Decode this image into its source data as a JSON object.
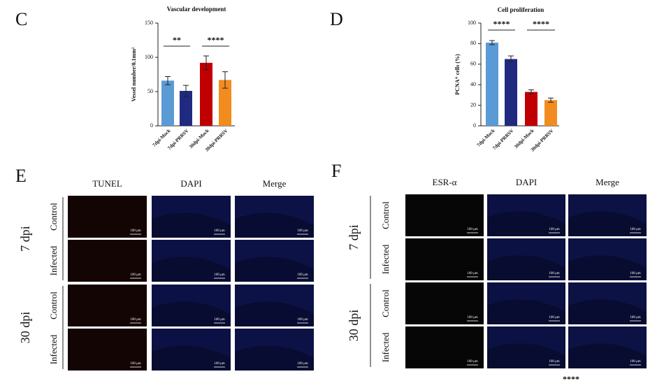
{
  "chart_data": [
    {
      "type": "bar",
      "panel_label": "C",
      "title": "Vascular development",
      "y_label": "Vessel number/0.1mm²",
      "categories": [
        "7dpi-Mock",
        "7dpi-PRRSV",
        "30dpi-Mock",
        "30dpi-PRRSV"
      ],
      "values": [
        66,
        51,
        92,
        67
      ],
      "errors": [
        6,
        8,
        10,
        12
      ],
      "colors": [
        "#5b9bd5",
        "#1f2a80",
        "#c00000",
        "#f28c1e"
      ],
      "ylim": [
        0,
        150
      ],
      "yticks": [
        0,
        50,
        100,
        150
      ],
      "annotations": [
        "**",
        "****"
      ]
    },
    {
      "type": "bar",
      "panel_label": "D",
      "title": "Cell proliferation",
      "y_label": "PCNA⁺ cells (%)",
      "categories": [
        "7dpi-Mock",
        "7dpi-PRRSV",
        "30dpi-Mock",
        "30dpi-PRRSV"
      ],
      "values": [
        81,
        65,
        33,
        25
      ],
      "errors": [
        2,
        3,
        2,
        2
      ],
      "colors": [
        "#5b9bd5",
        "#1f2a80",
        "#c00000",
        "#f28c1e"
      ],
      "ylim": [
        0,
        100
      ],
      "yticks": [
        0,
        20,
        40,
        60,
        80,
        100
      ],
      "annotations": [
        "****",
        "****"
      ]
    }
  ],
  "image_panels": [
    {
      "label": "E",
      "columns": [
        "TUNEL",
        "DAPI",
        "Merge"
      ],
      "groups": [
        {
          "name": "7 dpi",
          "rows": [
            "Control",
            "Infected"
          ]
        },
        {
          "name": "30 dpi",
          "rows": [
            "Control",
            "Infected"
          ]
        }
      ],
      "scale_bar": "100 μm"
    },
    {
      "label": "F",
      "columns": [
        "ESR-α",
        "DAPI",
        "Merge"
      ],
      "groups": [
        {
          "name": "7 dpi",
          "rows": [
            "Control",
            "Infected"
          ]
        },
        {
          "name": "30 dpi",
          "rows": [
            "Control",
            "Infected"
          ]
        }
      ],
      "scale_bar": "100 μm"
    }
  ],
  "footer_text": "****"
}
